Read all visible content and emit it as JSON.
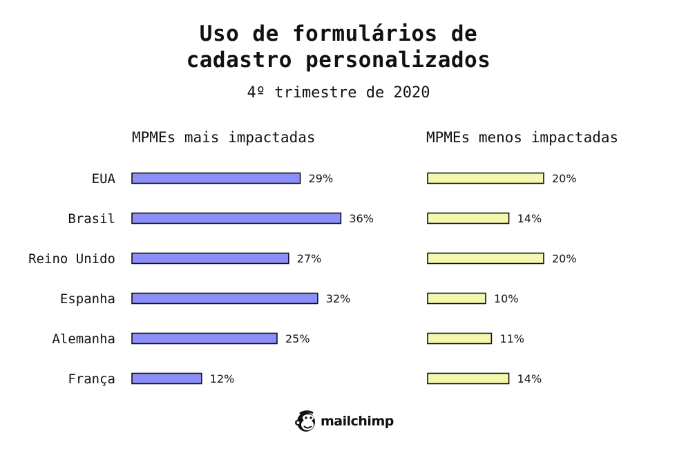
{
  "title_line1": "Uso de formulários de",
  "title_line2": "cadastro personalizados",
  "subtitle": "4º trimestre de 2020",
  "brand": "mailchimp",
  "colors": {
    "series1": "#8b8ff7",
    "series2": "#f4f8ae",
    "stroke": "#111111"
  },
  "chart_data": {
    "type": "bar",
    "orientation": "horizontal",
    "categories": [
      "EUA",
      "Brasil",
      "Reino Unido",
      "Espanha",
      "Alemanha",
      "França"
    ],
    "series": [
      {
        "name": "MPMEs mais impactadas",
        "values": [
          29,
          36,
          27,
          32,
          25,
          12
        ],
        "labels": [
          "29%",
          "36%",
          "27%",
          "32%",
          "25%",
          "12%"
        ]
      },
      {
        "name": "MPMEs menos impactadas",
        "values": [
          20,
          14,
          20,
          10,
          11,
          14
        ],
        "labels": [
          "20%",
          "14%",
          "20%",
          "10%",
          "11%",
          "14%"
        ]
      }
    ],
    "value_unit": "%",
    "grid": false
  }
}
